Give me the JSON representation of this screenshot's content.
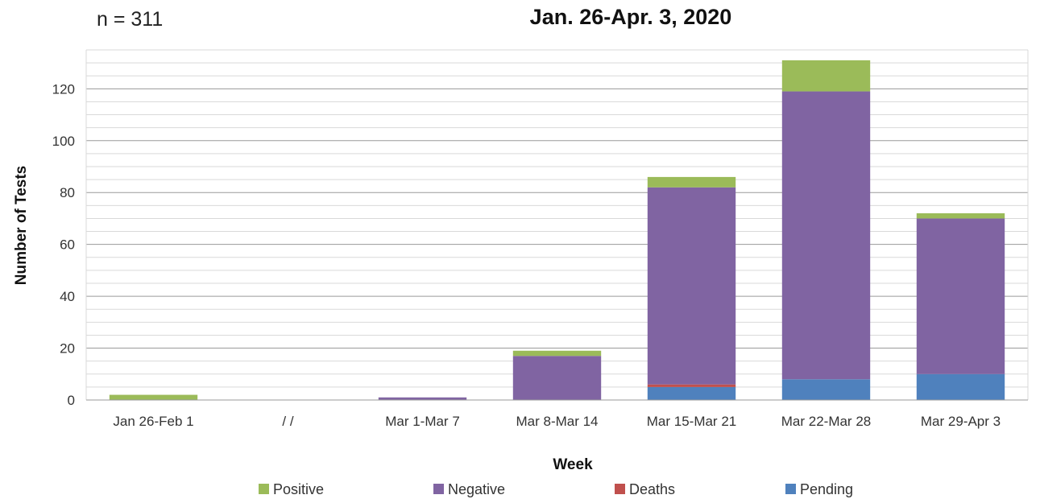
{
  "chart_data": {
    "type": "bar",
    "stacked": true,
    "title": "Jan. 26-Apr. 3, 2020",
    "annotation": "n = 311",
    "xlabel": "Week",
    "ylabel": "Number of Tests",
    "ylim": [
      0,
      135
    ],
    "yticks": [
      0,
      20,
      40,
      60,
      80,
      100,
      120
    ],
    "minor_grid_step": 5,
    "grid": true,
    "legend_position": "bottom",
    "categories": [
      "Jan 26-Feb 1",
      "/ /",
      "Mar 1-Mar 7",
      "Mar 8-Mar 14",
      "Mar 15-Mar 21",
      "Mar 22-Mar 28",
      "Mar 29-Apr 3"
    ],
    "series": [
      {
        "name": "Pending",
        "color": "#4f81bd",
        "values": [
          0,
          0,
          0,
          0,
          5,
          8,
          10
        ]
      },
      {
        "name": "Deaths",
        "color": "#c0504d",
        "values": [
          0,
          0,
          0,
          0,
          1,
          0,
          0
        ]
      },
      {
        "name": "Negative",
        "color": "#8064a2",
        "values": [
          0,
          0,
          1,
          17,
          76,
          111,
          60
        ]
      },
      {
        "name": "Positive",
        "color": "#9bbb59",
        "values": [
          2,
          0,
          0,
          2,
          4,
          12,
          2
        ]
      }
    ],
    "legend_order": [
      "Positive",
      "Negative",
      "Deaths",
      "Pending"
    ]
  }
}
